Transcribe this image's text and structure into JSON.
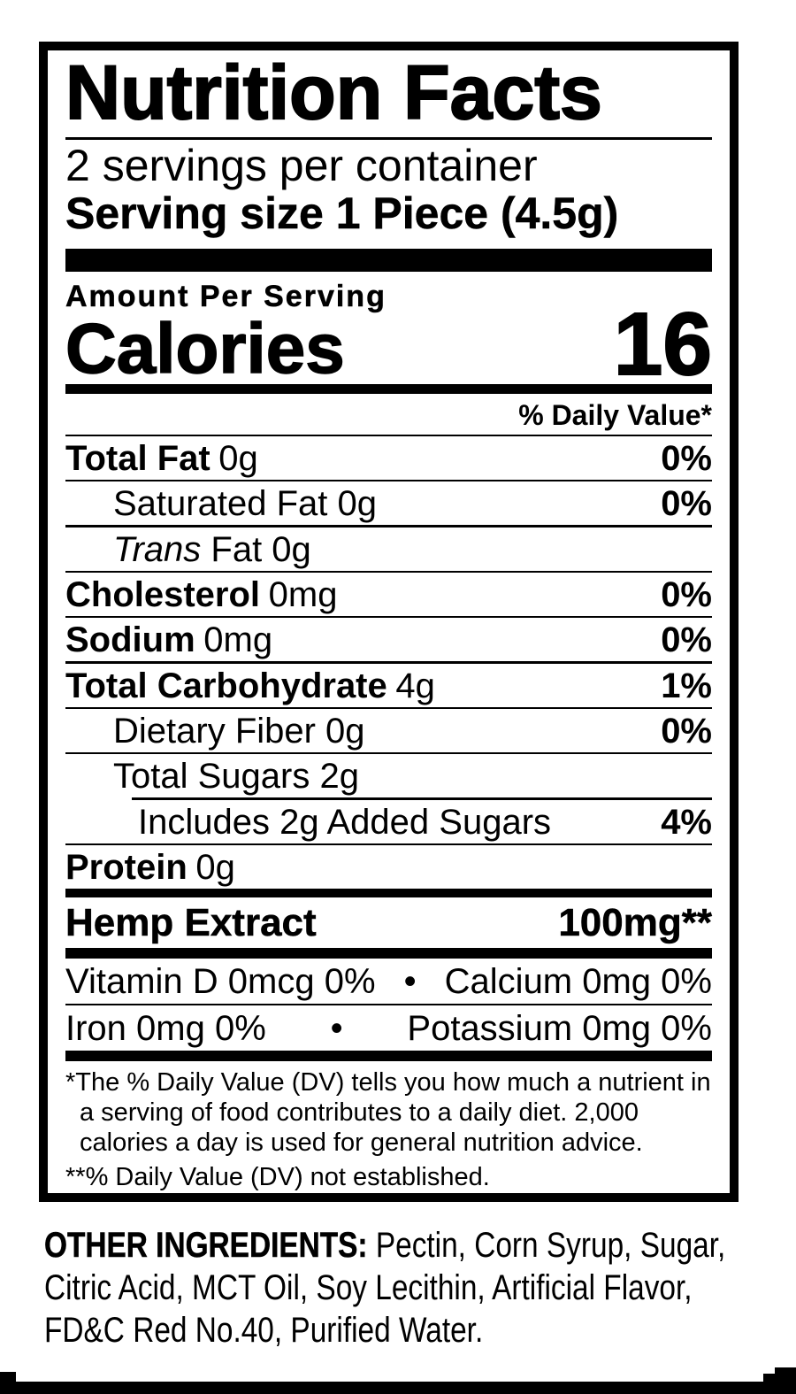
{
  "colors": {
    "ink": "#000000",
    "paper": "#ffffff"
  },
  "label": {
    "title": "Nutrition Facts",
    "servings_per_container": "2 servings per container",
    "serving_size": {
      "label": "Serving size",
      "value": "1 Piece (4.5g)"
    },
    "amount_per_serving": "Amount Per Serving",
    "calories": {
      "label": "Calories",
      "value": "16"
    },
    "daily_value_header": "% Daily Value*",
    "rows": [
      {
        "name_bold": "Total Fat",
        "amount": "0g",
        "dv": "0%"
      },
      {
        "name": "Saturated Fat 0g",
        "dv": "0%"
      },
      {
        "name_italic": "Trans",
        "name": " Fat 0g",
        "dv": ""
      },
      {
        "name_bold": "Cholesterol",
        "amount": "0mg",
        "dv": "0%"
      },
      {
        "name_bold": "Sodium",
        "amount": "0mg",
        "dv": "0%"
      },
      {
        "name_bold": "Total Carbohydrate",
        "amount": "4g",
        "dv": "1%"
      },
      {
        "name": "Dietary Fiber 0g",
        "dv": "0%"
      },
      {
        "name": "Total Sugars 2g",
        "dv": ""
      },
      {
        "name": "Includes 2g Added Sugars",
        "dv": "4%"
      },
      {
        "name_bold": "Protein",
        "amount": "0g",
        "dv": ""
      }
    ],
    "hemp": {
      "name": "Hemp Extract",
      "value": "100mg**"
    },
    "micronutrients": [
      {
        "left": "Vitamin D 0mcg 0%",
        "separator": "•",
        "right": "Calcium 0mg 0%"
      },
      {
        "left": "Iron 0mg 0%",
        "separator": "•",
        "right": "Potassium 0mg 0%"
      }
    ],
    "footnotes": {
      "daily_value": "*The % Daily Value (DV) tells you how much a nutrient in a serving of food contributes to a daily diet. 2,000 calories a day is used for general nutrition advice.",
      "not_established": "**% Daily Value (DV) not established."
    }
  },
  "ingredients": {
    "label": "OTHER INGREDIENTS:",
    "list": " Pectin, Corn Syrup, Sugar, Citric Acid, MCT Oil, Soy Lecithin, Artificial Flavor, FD&C Red No.40, Purified Water."
  }
}
